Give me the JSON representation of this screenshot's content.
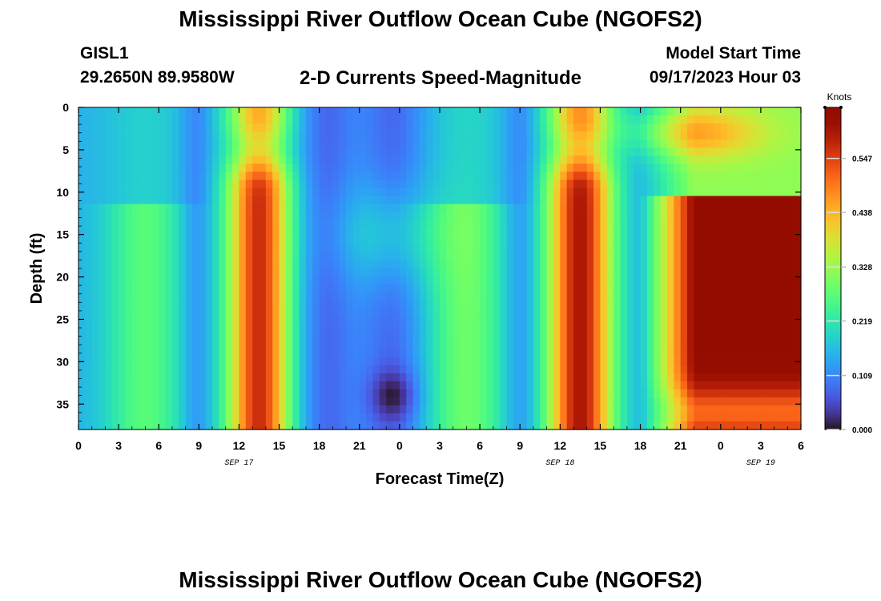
{
  "header": {
    "title": "Mississippi River Outflow Ocean Cube (NGOFS2)",
    "station": "GISL1",
    "coordinates": "29.2650N  89.9580W",
    "subtitle": "2-D Currents Speed-Magnitude",
    "start_label": "Model Start Time",
    "start_value": "09/17/2023 Hour 03"
  },
  "footer": {
    "title": "Mississippi River Outflow Ocean Cube (NGOFS2)"
  },
  "chart_data": {
    "type": "heatmap",
    "xlabel": "Forecast Time(Z)",
    "ylabel": "Depth (ft)",
    "x_tick_labels": [
      "0",
      "3",
      "6",
      "9",
      "12",
      "15",
      "18",
      "21",
      "0",
      "3",
      "6",
      "9",
      "12",
      "15",
      "18",
      "21",
      "0",
      "3",
      "6"
    ],
    "date_labels": [
      {
        "text": "SEP 17",
        "tick_index": 4
      },
      {
        "text": "SEP 18",
        "tick_index": 12
      },
      {
        "text": "SEP 19",
        "tick_index": 17
      }
    ],
    "x_range_hours": [
      0,
      54
    ],
    "ylim": [
      0,
      38
    ],
    "y_ticks": [
      0,
      5,
      10,
      15,
      20,
      25,
      30,
      35
    ],
    "y_inverted": true,
    "colorbar": {
      "label": "Knots",
      "range": [
        0,
        0.65
      ],
      "ticks": [
        0.0,
        0.109,
        0.219,
        0.328,
        0.438,
        0.547
      ],
      "tick_labels": [
        "0.000",
        "0.109",
        "0.219",
        "0.328",
        "0.438",
        "0.547"
      ],
      "colormap": "turbo"
    },
    "grid": false
  }
}
